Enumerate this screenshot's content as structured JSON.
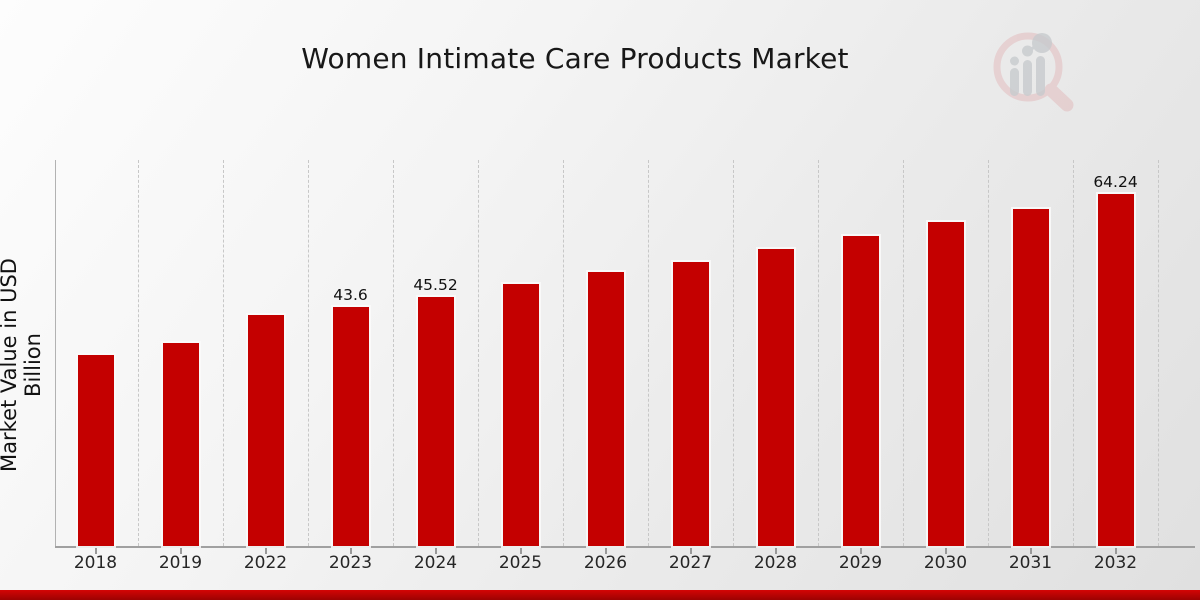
{
  "page": {
    "title": "Women Intimate Care Products Market",
    "logo_name": "market-research-future-watermark-logo"
  },
  "colors": {
    "bar": "#c40000",
    "footer_band_top": "#d40505",
    "footer_band_bottom": "#9c0202",
    "gridline": "#c7c7c7",
    "axis": "#a0a0a0",
    "title_text": "#181818",
    "tick_text": "#262626"
  },
  "chart_data": {
    "type": "bar",
    "title": "Women Intimate Care Products Market",
    "xlabel": "",
    "ylabel": "Market Value in USD Billion",
    "ylim": [
      0,
      70.5
    ],
    "grid": "vertical-dashed-category-separators",
    "legend": "none",
    "categories": [
      "2018",
      "2019",
      "2022",
      "2023",
      "2024",
      "2025",
      "2026",
      "2027",
      "2028",
      "2029",
      "2030",
      "2031",
      "2032"
    ],
    "values": [
      34.9,
      37.0,
      42.1,
      43.6,
      45.52,
      47.8,
      50.0,
      51.8,
      54.2,
      56.6,
      59.1,
      61.6,
      64.24
    ],
    "data_labels": [
      "",
      "",
      "",
      "43.6",
      "45.52",
      "",
      "",
      "",
      "",
      "",
      "",
      "",
      "64.24"
    ]
  }
}
